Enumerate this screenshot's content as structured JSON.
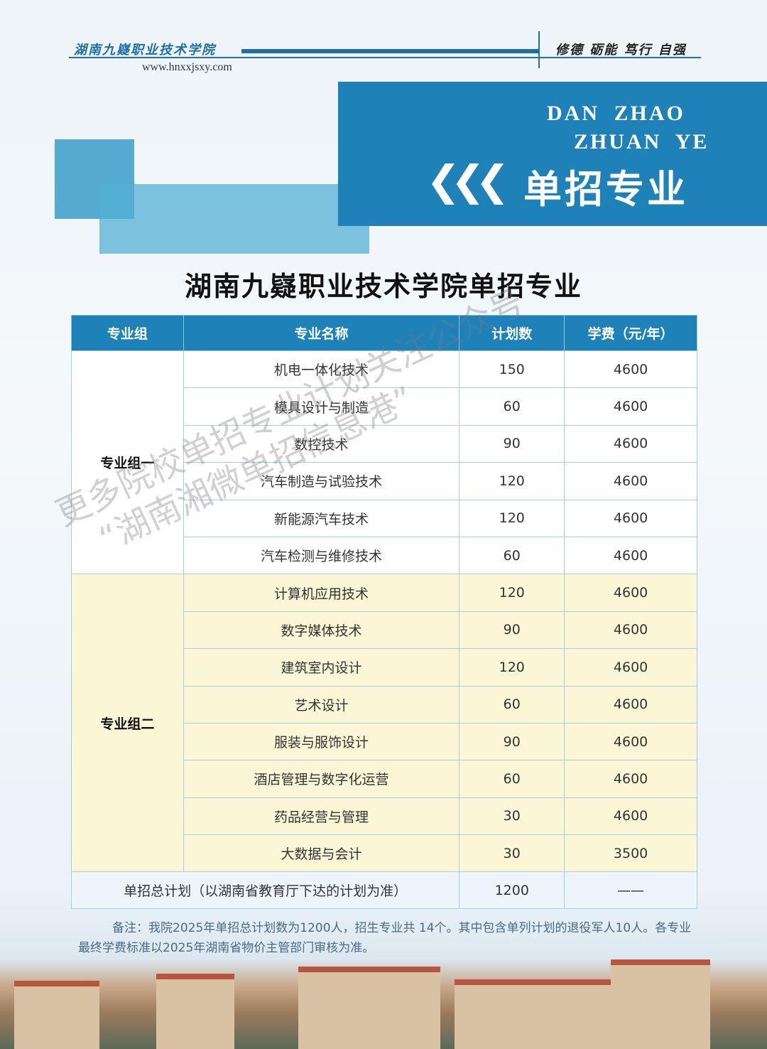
{
  "header": {
    "school_name": "湖南九嶷职业技术学院",
    "motto": "修德 砺能 笃行 自强",
    "url": "www.hnxxjsxy.com"
  },
  "banner": {
    "en_line1": "DAN  ZHAO",
    "en_line2": "ZHUAN  YE",
    "chevrons": "❮❮❮",
    "title": "单招专业"
  },
  "title": "湖南九嶷职业技术学院单招专业",
  "table": {
    "headers": [
      "专业组",
      "专业名称",
      "计划数",
      "学费（元/年）"
    ],
    "groups": [
      {
        "name": "专业组一",
        "rows": [
          {
            "major": "机电一体化技术",
            "plan": "150",
            "fee": "4600"
          },
          {
            "major": "模具设计与制造",
            "plan": "60",
            "fee": "4600"
          },
          {
            "major": "数控技术",
            "plan": "90",
            "fee": "4600"
          },
          {
            "major": "汽车制造与试验技术",
            "plan": "120",
            "fee": "4600"
          },
          {
            "major": "新能源汽车技术",
            "plan": "120",
            "fee": "4600"
          },
          {
            "major": "汽车检测与维修技术",
            "plan": "60",
            "fee": "4600"
          }
        ]
      },
      {
        "name": "专业组二",
        "rows": [
          {
            "major": "计算机应用技术",
            "plan": "120",
            "fee": "4600"
          },
          {
            "major": "数字媒体技术",
            "plan": "90",
            "fee": "4600"
          },
          {
            "major": "建筑室内设计",
            "plan": "120",
            "fee": "4600"
          },
          {
            "major": "艺术设计",
            "plan": "60",
            "fee": "4600"
          },
          {
            "major": "服装与服饰设计",
            "plan": "90",
            "fee": "4600"
          },
          {
            "major": "酒店管理与数字化运营",
            "plan": "60",
            "fee": "4600"
          },
          {
            "major": "药品经营与管理",
            "plan": "30",
            "fee": "4600"
          },
          {
            "major": "大数据与会计",
            "plan": "30",
            "fee": "3500"
          }
        ]
      }
    ],
    "total": {
      "label": "单招总计划（以湖南省教育厅下达的计划为准）",
      "plan": "1200",
      "fee": "——"
    }
  },
  "note": "备注：我院2025年单招总计划数为1200人，招生专业共 14个。其中包含单列计划的退役军人10人。各专业最终学费标准以2025年湖南省物价主管部门审核为准。",
  "watermark": {
    "line1": "更多院校单招专业计划关注公众号",
    "line2": "“湖南湘微单招信息港”"
  },
  "colors": {
    "brand_blue": "#1e82b8",
    "group2_bg": "#fbf6d5"
  }
}
